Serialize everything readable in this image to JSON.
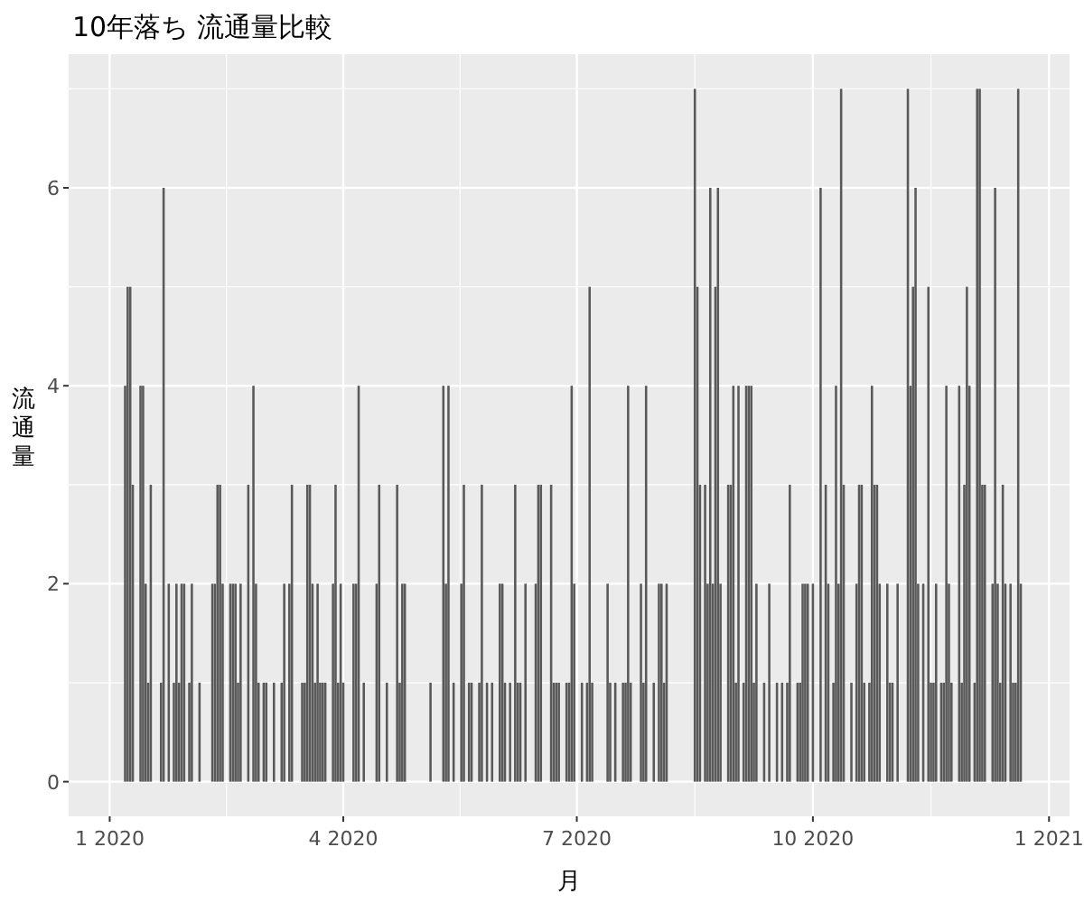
{
  "chart_data": {
    "type": "bar",
    "title": "10年落ち 流通量比較",
    "xlabel": "月",
    "ylabel": "流通量",
    "color": "#595959",
    "grid": true,
    "xlim": [
      "2019-12-16",
      "2021-01-09"
    ],
    "ylim": [
      -0.35,
      7.35
    ],
    "yticks": [
      0,
      2,
      4,
      6
    ],
    "xticks": [
      {
        "value": "2020-01-01",
        "label": "1 2020"
      },
      {
        "value": "2020-04-01",
        "label": "4 2020"
      },
      {
        "value": "2020-07-01",
        "label": "7 2020"
      },
      {
        "value": "2020-10-01",
        "label": "10 2020"
      },
      {
        "value": "2021-01-01",
        "label": "1 2021"
      }
    ],
    "x": [
      "2020-01-07",
      "2020-01-08",
      "2020-01-09",
      "2020-01-10",
      "2020-01-13",
      "2020-01-14",
      "2020-01-15",
      "2020-01-16",
      "2020-01-17",
      "2020-01-21",
      "2020-01-22",
      "2020-01-24",
      "2020-01-26",
      "2020-01-27",
      "2020-01-28",
      "2020-01-29",
      "2020-01-30",
      "2020-02-01",
      "2020-02-02",
      "2020-02-05",
      "2020-02-10",
      "2020-02-11",
      "2020-02-12",
      "2020-02-13",
      "2020-02-14",
      "2020-02-17",
      "2020-02-18",
      "2020-02-19",
      "2020-02-20",
      "2020-02-21",
      "2020-02-24",
      "2020-02-26",
      "2020-02-27",
      "2020-02-28",
      "2020-03-01",
      "2020-03-02",
      "2020-03-05",
      "2020-03-08",
      "2020-03-09",
      "2020-03-11",
      "2020-03-12",
      "2020-03-16",
      "2020-03-17",
      "2020-03-18",
      "2020-03-19",
      "2020-03-20",
      "2020-03-21",
      "2020-03-22",
      "2020-03-23",
      "2020-03-24",
      "2020-03-25",
      "2020-03-28",
      "2020-03-29",
      "2020-03-30",
      "2020-03-31",
      "2020-04-01",
      "2020-04-05",
      "2020-04-06",
      "2020-04-07",
      "2020-04-09",
      "2020-04-14",
      "2020-04-15",
      "2020-04-18",
      "2020-04-22",
      "2020-04-23",
      "2020-04-24",
      "2020-04-25",
      "2020-05-05",
      "2020-05-10",
      "2020-05-11",
      "2020-05-12",
      "2020-05-14",
      "2020-05-17",
      "2020-05-18",
      "2020-05-20",
      "2020-05-21",
      "2020-05-24",
      "2020-05-25",
      "2020-05-27",
      "2020-05-29",
      "2020-06-01",
      "2020-06-02",
      "2020-06-03",
      "2020-06-05",
      "2020-06-07",
      "2020-06-08",
      "2020-06-09",
      "2020-06-11",
      "2020-06-15",
      "2020-06-16",
      "2020-06-17",
      "2020-06-21",
      "2020-06-22",
      "2020-06-23",
      "2020-06-24",
      "2020-06-27",
      "2020-06-28",
      "2020-06-29",
      "2020-06-30",
      "2020-07-03",
      "2020-07-05",
      "2020-07-06",
      "2020-07-07",
      "2020-07-13",
      "2020-07-14",
      "2020-07-16",
      "2020-07-19",
      "2020-07-20",
      "2020-07-21",
      "2020-07-22",
      "2020-07-26",
      "2020-07-27",
      "2020-07-28",
      "2020-07-31",
      "2020-08-02",
      "2020-08-03",
      "2020-08-04",
      "2020-08-05",
      "2020-08-16",
      "2020-08-17",
      "2020-08-18",
      "2020-08-20",
      "2020-08-21",
      "2020-08-22",
      "2020-08-23",
      "2020-08-24",
      "2020-08-25",
      "2020-08-26",
      "2020-08-29",
      "2020-08-30",
      "2020-08-31",
      "2020-09-01",
      "2020-09-02",
      "2020-09-04",
      "2020-09-05",
      "2020-09-06",
      "2020-09-07",
      "2020-09-08",
      "2020-09-09",
      "2020-09-12",
      "2020-09-14",
      "2020-09-17",
      "2020-09-19",
      "2020-09-21",
      "2020-09-22",
      "2020-09-25",
      "2020-09-26",
      "2020-09-27",
      "2020-09-28",
      "2020-09-29",
      "2020-10-01",
      "2020-10-04",
      "2020-10-06",
      "2020-10-07",
      "2020-10-09",
      "2020-10-10",
      "2020-10-11",
      "2020-10-12",
      "2020-10-13",
      "2020-10-16",
      "2020-10-18",
      "2020-10-19",
      "2020-10-20",
      "2020-10-21",
      "2020-10-23",
      "2020-10-24",
      "2020-10-25",
      "2020-10-26",
      "2020-10-27",
      "2020-10-30",
      "2020-10-31",
      "2020-11-01",
      "2020-11-03",
      "2020-11-07",
      "2020-11-08",
      "2020-11-09",
      "2020-11-10",
      "2020-11-11",
      "2020-11-13",
      "2020-11-15",
      "2020-11-16",
      "2020-11-17",
      "2020-11-18",
      "2020-11-20",
      "2020-11-21",
      "2020-11-22",
      "2020-11-23",
      "2020-11-24",
      "2020-11-27",
      "2020-11-28",
      "2020-11-29",
      "2020-11-30",
      "2020-12-01",
      "2020-12-03",
      "2020-12-04",
      "2020-12-05",
      "2020-12-06",
      "2020-12-07",
      "2020-12-10",
      "2020-12-11",
      "2020-12-12",
      "2020-12-13",
      "2020-12-14",
      "2020-12-15",
      "2020-12-17",
      "2020-12-18",
      "2020-12-19",
      "2020-12-20",
      "2020-12-21"
    ],
    "values": [
      4,
      5,
      5,
      3,
      4,
      4,
      2,
      1,
      3,
      1,
      6,
      2,
      1,
      2,
      1,
      2,
      2,
      1,
      2,
      1,
      2,
      2,
      3,
      3,
      2,
      2,
      2,
      2,
      1,
      2,
      3,
      4,
      2,
      1,
      1,
      1,
      1,
      1,
      2,
      2,
      3,
      1,
      1,
      3,
      3,
      2,
      1,
      2,
      1,
      1,
      1,
      2,
      3,
      1,
      2,
      1,
      2,
      2,
      4,
      1,
      2,
      3,
      1,
      3,
      1,
      2,
      2,
      1,
      4,
      2,
      4,
      1,
      2,
      3,
      1,
      1,
      1,
      3,
      1,
      1,
      2,
      2,
      1,
      1,
      3,
      1,
      1,
      2,
      2,
      3,
      3,
      3,
      1,
      1,
      1,
      1,
      1,
      4,
      2,
      1,
      1,
      5,
      1,
      2,
      1,
      1,
      1,
      1,
      4,
      1,
      2,
      1,
      4,
      1,
      2,
      2,
      1,
      2,
      7,
      5,
      3,
      3,
      2,
      6,
      2,
      5,
      6,
      2,
      3,
      3,
      4,
      1,
      4,
      1,
      4,
      4,
      4,
      1,
      2,
      1,
      2,
      1,
      1,
      1,
      3,
      1,
      1,
      2,
      2,
      2,
      2,
      6,
      3,
      2,
      1,
      4,
      2,
      7,
      3,
      1,
      2,
      3,
      3,
      1,
      1,
      4,
      3,
      3,
      2,
      2,
      1,
      1,
      2,
      7,
      4,
      5,
      6,
      2,
      2,
      5,
      1,
      1,
      2,
      1,
      1,
      4,
      2,
      1,
      4,
      1,
      3,
      5,
      4,
      1,
      7,
      7,
      3,
      3,
      2,
      6,
      2,
      1,
      3,
      2,
      2,
      1,
      1,
      7,
      2
    ]
  }
}
